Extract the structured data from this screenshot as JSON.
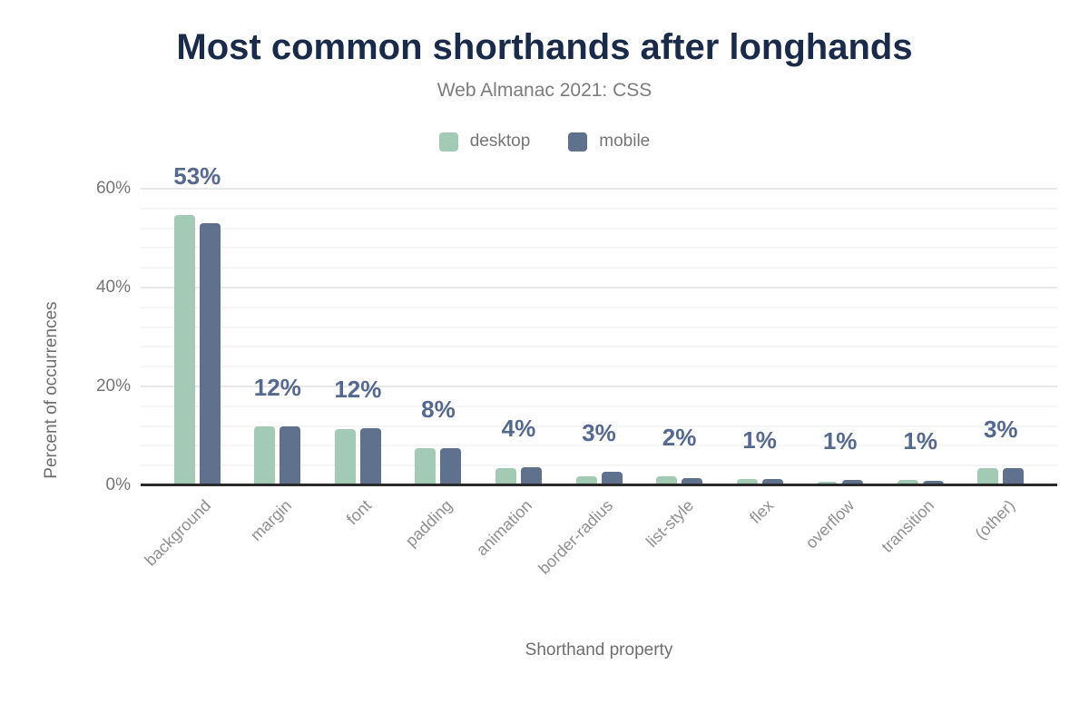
{
  "title": "Most common shorthands after longhands",
  "subtitle": "Web Almanac 2021: CSS",
  "legend": {
    "items": [
      {
        "label": "desktop",
        "color": "#a3cab5"
      },
      {
        "label": "mobile",
        "color": "#5f718d"
      }
    ]
  },
  "chart_data": {
    "type": "bar",
    "title": "Most common shorthands after longhands",
    "subtitle": "Web Almanac 2021: CSS",
    "categories": [
      "background",
      "margin",
      "font",
      "padding",
      "animation",
      "border-radius",
      "list-style",
      "flex",
      "overflow",
      "transition",
      "(other)"
    ],
    "series": [
      {
        "name": "desktop",
        "color": "#a3cab5",
        "values": [
          54.7,
          11.9,
          11.3,
          7.5,
          3.5,
          1.9,
          1.8,
          1.2,
          0.8,
          1.1,
          3.4
        ]
      },
      {
        "name": "mobile",
        "color": "#5f718d",
        "values": [
          53.0,
          11.9,
          11.6,
          7.5,
          3.6,
          2.7,
          1.5,
          1.2,
          1.1,
          1.0,
          3.5
        ]
      }
    ],
    "bar_labels": [
      "53%",
      "12%",
      "12%",
      "8%",
      "4%",
      "3%",
      "2%",
      "1%",
      "1%",
      "1%",
      "3%"
    ],
    "xlabel": "Shorthand property",
    "ylabel": "Percent of occurrences",
    "y_ticks": [
      {
        "value": 0,
        "label": "0%"
      },
      {
        "value": 20,
        "label": "20%"
      },
      {
        "value": 40,
        "label": "40%"
      },
      {
        "value": 60,
        "label": "60%"
      }
    ],
    "ylim": [
      0,
      62.4
    ],
    "grid": {
      "orientation": "horizontal",
      "major_step": 20,
      "minor_step": 4
    },
    "legend_position": "top",
    "colors": {
      "title": "#1a2b49",
      "subtitle": "#7c7c7c",
      "value_label": "#55688f",
      "axis_line": "#2a2a2a",
      "tick_text": "#757575",
      "category_text": "#8f8f8f"
    }
  }
}
